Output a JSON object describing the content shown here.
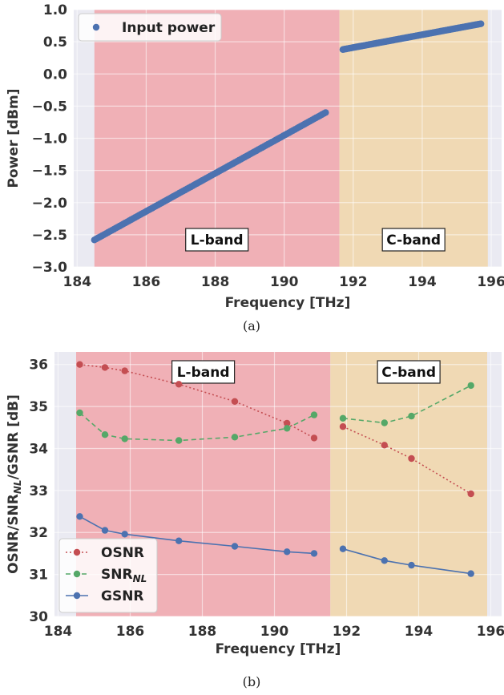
{
  "chart_data": [
    {
      "type": "scatter",
      "caption": "(a)",
      "xlabel": "Frequency [THz]",
      "ylabel": "Power [dBm]",
      "xlim": [
        183.9,
        196.3
      ],
      "ylim": [
        -3.0,
        1.0
      ],
      "xticks": [
        184,
        186,
        188,
        190,
        192,
        194,
        196
      ],
      "yticks": [
        -3.0,
        -2.5,
        -2.0,
        -1.5,
        -1.0,
        -0.5,
        0.0,
        0.5,
        1.0
      ],
      "ytick_labels": [
        "−3.0",
        "−2.5",
        "−2.0",
        "−1.5",
        "−1.0",
        "−0.5",
        "0.0",
        "0.5",
        "1.0"
      ],
      "grid": true,
      "legend_position": "top-left",
      "bands": [
        {
          "label": "L-band",
          "x_range": [
            184.5,
            191.6
          ],
          "color": "#f0b0b6"
        },
        {
          "label": "C-band",
          "x_range": [
            191.6,
            195.9
          ],
          "color": "#f0d9b4"
        }
      ],
      "series": [
        {
          "name": "Input power",
          "color": "#4c72b0",
          "segments": [
            {
              "x": [
                184.5,
                191.2
              ],
              "y": [
                -2.58,
                -0.6
              ]
            },
            {
              "x": [
                191.7,
                195.7
              ],
              "y": [
                0.38,
                0.78
              ]
            }
          ]
        }
      ]
    },
    {
      "type": "line",
      "caption": "(b)",
      "xlabel": "Frequency [THz]",
      "ylabel": "OSNR/SNR_NL/GSNR [dB]",
      "xlim": [
        183.9,
        196.3
      ],
      "ylim": [
        30,
        36.3
      ],
      "xticks": [
        184,
        186,
        188,
        190,
        192,
        194,
        196
      ],
      "yticks": [
        30,
        31,
        32,
        33,
        34,
        35,
        36
      ],
      "grid": true,
      "legend_position": "bottom-left",
      "bands": [
        {
          "label": "L-band",
          "x_range": [
            184.5,
            191.55
          ],
          "color": "#f0b0b6"
        },
        {
          "label": "C-band",
          "x_range": [
            191.55,
            195.9
          ],
          "color": "#f0d9b4"
        }
      ],
      "series": [
        {
          "name": "OSNR",
          "color": "#c44e52",
          "linestyle": "dotted",
          "segments": [
            {
              "x": [
                184.6,
                185.3,
                185.85,
                187.35,
                188.9,
                190.35,
                191.1
              ],
              "y": [
                36.0,
                35.93,
                35.85,
                35.53,
                35.12,
                34.6,
                34.25
              ]
            },
            {
              "x": [
                191.9,
                193.05,
                193.8,
                195.45
              ],
              "y": [
                34.52,
                34.08,
                33.76,
                32.92
              ]
            }
          ]
        },
        {
          "name": "SNR_NL",
          "color": "#55a868",
          "linestyle": "dashed",
          "segments": [
            {
              "x": [
                184.6,
                185.3,
                185.85,
                187.35,
                188.9,
                190.35,
                191.1
              ],
              "y": [
                34.85,
                34.33,
                34.23,
                34.19,
                34.27,
                34.48,
                34.8
              ]
            },
            {
              "x": [
                191.9,
                193.05,
                193.8,
                195.45
              ],
              "y": [
                34.72,
                34.61,
                34.77,
                35.5
              ]
            }
          ]
        },
        {
          "name": "GSNR",
          "color": "#4c72b0",
          "linestyle": "solid",
          "segments": [
            {
              "x": [
                184.6,
                185.3,
                185.85,
                187.35,
                188.9,
                190.35,
                191.1
              ],
              "y": [
                32.38,
                32.05,
                31.96,
                31.8,
                31.67,
                31.54,
                31.5
              ]
            },
            {
              "x": [
                191.9,
                193.05,
                193.8,
                195.45
              ],
              "y": [
                31.61,
                31.33,
                31.22,
                31.02
              ]
            }
          ]
        }
      ]
    }
  ]
}
